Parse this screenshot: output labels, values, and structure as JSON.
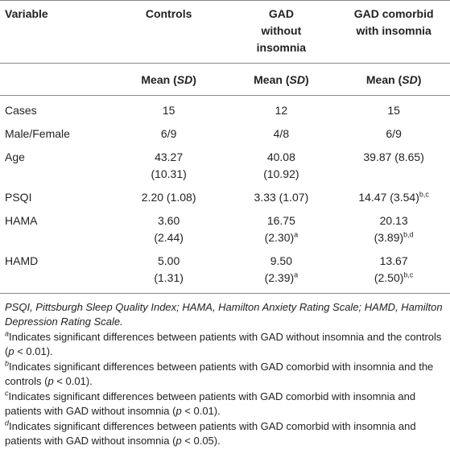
{
  "header": {
    "columns": [
      [
        "Variable"
      ],
      [
        "Controls"
      ],
      [
        "GAD",
        "without",
        "insomnia"
      ],
      [
        "GAD comorbid",
        "with insomnia"
      ]
    ],
    "subheader": [
      [
        "Mean (",
        "SD",
        ")"
      ],
      [
        "Mean (",
        "SD",
        ")"
      ],
      [
        "Mean (",
        "SD",
        ")"
      ]
    ]
  },
  "rows": [
    {
      "variable": "Cases",
      "cells": [
        {
          "lines": [
            "15"
          ]
        },
        {
          "lines": [
            "12"
          ]
        },
        {
          "lines": [
            "15"
          ]
        }
      ]
    },
    {
      "variable": "Male/Female",
      "cells": [
        {
          "lines": [
            "6/9"
          ]
        },
        {
          "lines": [
            "4/8"
          ]
        },
        {
          "lines": [
            "6/9"
          ]
        }
      ]
    },
    {
      "variable": "Age",
      "cells": [
        {
          "lines": [
            "43.27",
            "(10.31)"
          ]
        },
        {
          "lines": [
            "40.08",
            "(10.92)"
          ]
        },
        {
          "lines": [
            "39.87 (8.65)"
          ]
        }
      ]
    },
    {
      "variable": "PSQI",
      "cells": [
        {
          "lines": [
            "2.20 (1.08)"
          ]
        },
        {
          "lines": [
            "3.33 (1.07)"
          ]
        },
        {
          "lines": [
            "14.47 (3.54)"
          ],
          "sup": "b,c"
        }
      ]
    },
    {
      "variable": "HAMA",
      "cells": [
        {
          "lines": [
            "3.60",
            "(2.44)"
          ]
        },
        {
          "lines": [
            "16.75",
            "(2.30)"
          ],
          "sup": "a"
        },
        {
          "lines": [
            "20.13",
            "(3.89)"
          ],
          "sup": "b,d"
        }
      ]
    },
    {
      "variable": "HAMD",
      "cells": [
        {
          "lines": [
            "5.00",
            "(1.31)"
          ]
        },
        {
          "lines": [
            "9.50",
            "(2.39)"
          ],
          "sup": "a"
        },
        {
          "lines": [
            "13.67",
            "(2.50)"
          ],
          "sup": "b,c"
        }
      ]
    }
  ],
  "footnotes": {
    "abbreviations": "PSQI, Pittsburgh Sleep Quality Index; HAMA, Hamilton Anxiety Rating Scale; HAMD, Hamilton Depression Rating Scale.",
    "notes": [
      {
        "mark": "a",
        "text": [
          "Indicates significant differences between patients with GAD without insomnia and the controls (",
          "p",
          " <  0.01)."
        ]
      },
      {
        "mark": "b",
        "text": [
          "Indicates significant differences between patients with GAD comorbid with insomnia and the controls (",
          "p",
          " < 0.01)."
        ]
      },
      {
        "mark": "c",
        "text": [
          "Indicates significant differences between patients with GAD comorbid with insomnia and patients with GAD without insomnia (",
          "p",
          " < 0.01)."
        ]
      },
      {
        "mark": "d",
        "text": [
          "Indicates significant differences between patients with GAD comorbid with insomnia and patients with GAD without insomnia (",
          "p",
          " < 0.05)."
        ]
      }
    ]
  }
}
